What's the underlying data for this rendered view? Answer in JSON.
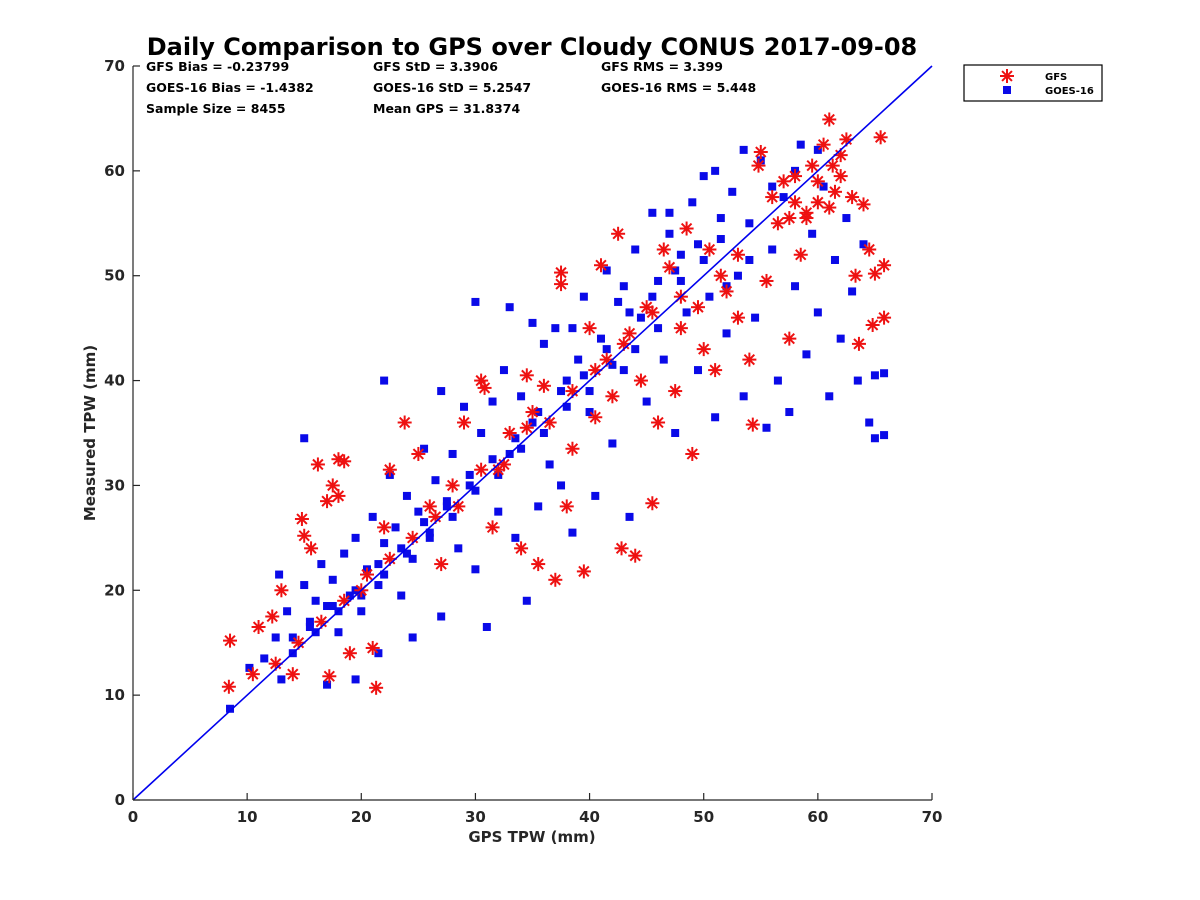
{
  "chart_data": {
    "type": "scatter",
    "title": "Daily Comparison to GPS over Cloudy CONUS 2017-09-08",
    "xlabel": "GPS TPW (mm)",
    "ylabel": "Measured TPW (mm)",
    "xlim": [
      0,
      70
    ],
    "ylim": [
      0,
      70
    ],
    "xticks": [
      "0",
      "10",
      "20",
      "30",
      "40",
      "50",
      "60",
      "70"
    ],
    "yticks": [
      "0",
      "10",
      "20",
      "30",
      "40",
      "50",
      "60",
      "70"
    ],
    "grid": false,
    "legend_position": "outside-top-right",
    "reference_line": {
      "x": [
        0,
        70
      ],
      "y": [
        0,
        70
      ],
      "color": "#0000ee"
    },
    "stats": {
      "gfs_bias": "GFS Bias = -0.23799",
      "gfs_std": "GFS StD = 3.3906",
      "gfs_rms": "GFS RMS = 3.399",
      "goes_bias": "GOES-16 Bias = -1.4382",
      "goes_std": "GOES-16 StD = 5.2547",
      "goes_rms": "GOES-16 RMS = 5.448",
      "sample_size": "Sample Size = 8455",
      "mean_gps": "Mean GPS = 31.8374"
    },
    "series": [
      {
        "name": "GFS",
        "marker": "asterisk",
        "color": "#ee1111",
        "points": [
          [
            8.5,
            15.2
          ],
          [
            8.4,
            10.8
          ],
          [
            10.5,
            12.0
          ],
          [
            11.0,
            16.5
          ],
          [
            12.2,
            17.5
          ],
          [
            13.0,
            20.0
          ],
          [
            14.0,
            12.0
          ],
          [
            14.8,
            26.8
          ],
          [
            15.0,
            25.2
          ],
          [
            15.6,
            24.0
          ],
          [
            16.2,
            32.0
          ],
          [
            17.0,
            28.5
          ],
          [
            17.5,
            30.0
          ],
          [
            18.0,
            32.5
          ],
          [
            18.5,
            32.3
          ],
          [
            18.0,
            29.0
          ],
          [
            17.2,
            11.8
          ],
          [
            19.0,
            14.0
          ],
          [
            20.0,
            20.0
          ],
          [
            21.3,
            10.7
          ],
          [
            21.0,
            14.5
          ],
          [
            22.0,
            26.0
          ],
          [
            22.5,
            31.5
          ],
          [
            23.8,
            36.0
          ],
          [
            25.0,
            33.0
          ],
          [
            26.0,
            28.0
          ],
          [
            27.0,
            22.5
          ],
          [
            28.0,
            30.0
          ],
          [
            29.0,
            36.0
          ],
          [
            30.5,
            40.0
          ],
          [
            30.8,
            39.3
          ],
          [
            31.5,
            26.0
          ],
          [
            32.0,
            31.5
          ],
          [
            33.0,
            35.0
          ],
          [
            34.0,
            24.0
          ],
          [
            34.5,
            40.5
          ],
          [
            35.0,
            37.0
          ],
          [
            35.5,
            22.5
          ],
          [
            36.0,
            39.5
          ],
          [
            37.0,
            21.0
          ],
          [
            37.5,
            50.3
          ],
          [
            37.5,
            49.2
          ],
          [
            38.0,
            28.0
          ],
          [
            38.5,
            33.5
          ],
          [
            39.5,
            21.8
          ],
          [
            40.0,
            45.0
          ],
          [
            40.5,
            36.5
          ],
          [
            41.0,
            51.0
          ],
          [
            41.5,
            42.0
          ],
          [
            42.0,
            38.5
          ],
          [
            42.5,
            54.0
          ],
          [
            42.8,
            24.0
          ],
          [
            43.5,
            44.5
          ],
          [
            44.0,
            23.3
          ],
          [
            44.5,
            40.0
          ],
          [
            45.0,
            47.0
          ],
          [
            45.5,
            28.3
          ],
          [
            46.0,
            36.0
          ],
          [
            46.5,
            52.5
          ],
          [
            47.0,
            50.8
          ],
          [
            47.5,
            39.0
          ],
          [
            48.0,
            45.0
          ],
          [
            48.5,
            54.5
          ],
          [
            49.0,
            33.0
          ],
          [
            49.5,
            47.0
          ],
          [
            50.0,
            43.0
          ],
          [
            50.5,
            52.5
          ],
          [
            51.0,
            41.0
          ],
          [
            52.0,
            48.5
          ],
          [
            53.0,
            46.0
          ],
          [
            54.0,
            42.0
          ],
          [
            54.3,
            35.8
          ],
          [
            54.8,
            60.5
          ],
          [
            55.0,
            61.8
          ],
          [
            55.5,
            49.5
          ],
          [
            56.0,
            57.5
          ],
          [
            56.5,
            55.0
          ],
          [
            57.0,
            59.0
          ],
          [
            57.5,
            44.0
          ],
          [
            58.0,
            59.5
          ],
          [
            58.5,
            52.0
          ],
          [
            59.0,
            55.5
          ],
          [
            59.5,
            60.5
          ],
          [
            60.0,
            57.0
          ],
          [
            60.5,
            62.5
          ],
          [
            61.0,
            64.9
          ],
          [
            61.3,
            60.5
          ],
          [
            61.5,
            58.0
          ],
          [
            62.0,
            61.5
          ],
          [
            62.5,
            63.0
          ],
          [
            63.0,
            57.5
          ],
          [
            63.3,
            50.0
          ],
          [
            63.6,
            43.5
          ],
          [
            64.0,
            56.8
          ],
          [
            64.5,
            52.5
          ],
          [
            64.8,
            45.3
          ],
          [
            65.0,
            50.2
          ],
          [
            65.5,
            63.2
          ],
          [
            65.8,
            51.0
          ],
          [
            65.8,
            46.0
          ],
          [
            58.0,
            57.0
          ],
          [
            59.0,
            56.0
          ],
          [
            60.0,
            59.0
          ],
          [
            61.0,
            56.5
          ],
          [
            62.0,
            59.5
          ],
          [
            57.5,
            55.5
          ],
          [
            53.0,
            52.0
          ],
          [
            51.5,
            50.0
          ],
          [
            48.0,
            48.0
          ],
          [
            45.5,
            46.5
          ],
          [
            43.0,
            43.5
          ],
          [
            40.5,
            41.0
          ],
          [
            38.5,
            39.0
          ],
          [
            36.5,
            36.0
          ],
          [
            34.5,
            35.5
          ],
          [
            32.5,
            32.0
          ],
          [
            30.5,
            31.5
          ],
          [
            28.5,
            28.0
          ],
          [
            26.5,
            27.0
          ],
          [
            24.5,
            25.0
          ],
          [
            22.5,
            23.0
          ],
          [
            20.5,
            21.5
          ],
          [
            18.5,
            19.0
          ],
          [
            16.5,
            17.0
          ],
          [
            14.5,
            15.0
          ],
          [
            12.5,
            13.0
          ]
        ]
      },
      {
        "name": "GOES-16",
        "marker": "square",
        "color": "#0a0ae8",
        "points": [
          [
            8.5,
            8.7
          ],
          [
            10.2,
            12.6
          ],
          [
            11.5,
            13.5
          ],
          [
            12.5,
            15.5
          ],
          [
            12.8,
            21.5
          ],
          [
            13.5,
            18.0
          ],
          [
            14.0,
            14.0
          ],
          [
            15.0,
            20.5
          ],
          [
            15.5,
            17.0
          ],
          [
            16.0,
            19.0
          ],
          [
            16.5,
            22.5
          ],
          [
            17.0,
            18.5
          ],
          [
            17.5,
            21.0
          ],
          [
            18.0,
            16.0
          ],
          [
            18.5,
            23.5
          ],
          [
            19.0,
            19.5
          ],
          [
            19.5,
            25.0
          ],
          [
            20.0,
            18.0
          ],
          [
            20.5,
            22.0
          ],
          [
            21.0,
            27.0
          ],
          [
            21.5,
            20.5
          ],
          [
            22.0,
            24.5
          ],
          [
            22.5,
            31.0
          ],
          [
            23.0,
            26.0
          ],
          [
            23.5,
            19.5
          ],
          [
            24.0,
            29.0
          ],
          [
            24.5,
            23.0
          ],
          [
            25.0,
            27.5
          ],
          [
            25.5,
            33.5
          ],
          [
            26.0,
            25.5
          ],
          [
            26.5,
            30.5
          ],
          [
            27.0,
            17.5
          ],
          [
            27.5,
            28.5
          ],
          [
            28.0,
            33.0
          ],
          [
            28.5,
            24.0
          ],
          [
            29.0,
            37.5
          ],
          [
            29.5,
            31.0
          ],
          [
            30.0,
            22.0
          ],
          [
            30.5,
            35.0
          ],
          [
            31.0,
            16.5
          ],
          [
            31.5,
            38.0
          ],
          [
            32.0,
            27.5
          ],
          [
            32.5,
            41.0
          ],
          [
            33.0,
            33.0
          ],
          [
            33.5,
            25.0
          ],
          [
            34.0,
            38.5
          ],
          [
            34.5,
            19.0
          ],
          [
            35.0,
            36.0
          ],
          [
            35.5,
            28.0
          ],
          [
            36.0,
            43.5
          ],
          [
            36.5,
            32.0
          ],
          [
            37.0,
            45.0
          ],
          [
            37.5,
            30.0
          ],
          [
            38.0,
            40.0
          ],
          [
            38.5,
            25.5
          ],
          [
            39.0,
            42.0
          ],
          [
            39.5,
            48.0
          ],
          [
            40.0,
            37.0
          ],
          [
            40.5,
            29.0
          ],
          [
            41.0,
            44.0
          ],
          [
            41.5,
            50.5
          ],
          [
            42.0,
            34.0
          ],
          [
            42.5,
            47.5
          ],
          [
            43.0,
            41.0
          ],
          [
            43.5,
            27.0
          ],
          [
            44.0,
            52.5
          ],
          [
            44.5,
            46.0
          ],
          [
            45.0,
            38.0
          ],
          [
            45.5,
            56.0
          ],
          [
            46.0,
            49.5
          ],
          [
            46.5,
            42.0
          ],
          [
            47.0,
            54.0
          ],
          [
            47.5,
            35.0
          ],
          [
            48.0,
            52.0
          ],
          [
            48.5,
            46.5
          ],
          [
            49.0,
            57.0
          ],
          [
            49.5,
            41.0
          ],
          [
            50.0,
            59.5
          ],
          [
            50.5,
            48.0
          ],
          [
            51.0,
            36.5
          ],
          [
            51.5,
            53.5
          ],
          [
            52.0,
            44.5
          ],
          [
            52.5,
            58.0
          ],
          [
            53.0,
            50.0
          ],
          [
            53.5,
            38.5
          ],
          [
            54.0,
            55.0
          ],
          [
            54.5,
            46.0
          ],
          [
            55.0,
            61.0
          ],
          [
            55.5,
            35.5
          ],
          [
            56.0,
            52.5
          ],
          [
            56.5,
            40.0
          ],
          [
            57.0,
            57.5
          ],
          [
            57.5,
            37.0
          ],
          [
            58.0,
            49.0
          ],
          [
            58.5,
            62.5
          ],
          [
            59.0,
            42.5
          ],
          [
            59.5,
            54.0
          ],
          [
            60.0,
            46.5
          ],
          [
            60.5,
            58.5
          ],
          [
            61.0,
            38.5
          ],
          [
            61.5,
            51.5
          ],
          [
            62.0,
            44.0
          ],
          [
            62.5,
            55.5
          ],
          [
            63.0,
            48.5
          ],
          [
            63.5,
            40.0
          ],
          [
            64.0,
            53.0
          ],
          [
            64.5,
            36.0
          ],
          [
            65.0,
            40.5
          ],
          [
            65.0,
            34.5
          ],
          [
            65.8,
            40.7
          ],
          [
            65.8,
            34.8
          ],
          [
            60.0,
            62.0
          ],
          [
            58.0,
            60.0
          ],
          [
            56.0,
            58.5
          ],
          [
            54.0,
            51.5
          ],
          [
            52.0,
            49.0
          ],
          [
            50.0,
            51.5
          ],
          [
            48.0,
            49.5
          ],
          [
            46.0,
            45.0
          ],
          [
            44.0,
            43.0
          ],
          [
            42.0,
            41.5
          ],
          [
            40.0,
            39.0
          ],
          [
            38.0,
            37.5
          ],
          [
            36.0,
            35.0
          ],
          [
            34.0,
            33.5
          ],
          [
            32.0,
            31.0
          ],
          [
            30.0,
            29.5
          ],
          [
            28.0,
            27.0
          ],
          [
            26.0,
            25.0
          ],
          [
            24.0,
            23.5
          ],
          [
            22.0,
            21.5
          ],
          [
            20.0,
            19.5
          ],
          [
            18.0,
            18.0
          ],
          [
            16.0,
            16.0
          ],
          [
            14.0,
            15.5
          ],
          [
            13.0,
            11.5
          ],
          [
            17.0,
            11.0
          ],
          [
            19.5,
            11.5
          ],
          [
            21.5,
            14.0
          ],
          [
            24.5,
            15.5
          ],
          [
            15.0,
            34.5
          ],
          [
            22.0,
            40.0
          ],
          [
            27.0,
            39.0
          ],
          [
            30.0,
            47.5
          ],
          [
            33.0,
            47.0
          ],
          [
            35.0,
            45.5
          ],
          [
            38.5,
            45.0
          ],
          [
            43.0,
            49.0
          ],
          [
            47.0,
            56.0
          ],
          [
            51.0,
            60.0
          ],
          [
            53.5,
            62.0
          ],
          [
            51.5,
            55.5
          ],
          [
            49.5,
            53.0
          ],
          [
            47.5,
            50.5
          ],
          [
            45.5,
            48.0
          ],
          [
            43.5,
            46.5
          ],
          [
            41.5,
            43.0
          ],
          [
            39.5,
            40.5
          ],
          [
            37.5,
            39.0
          ],
          [
            35.5,
            37.0
          ],
          [
            33.5,
            34.5
          ],
          [
            31.5,
            32.5
          ],
          [
            29.5,
            30.0
          ],
          [
            27.5,
            28.0
          ],
          [
            25.5,
            26.5
          ],
          [
            23.5,
            24.0
          ],
          [
            21.5,
            22.5
          ],
          [
            19.5,
            20.0
          ],
          [
            17.5,
            18.5
          ],
          [
            15.5,
            16.5
          ]
        ]
      }
    ]
  }
}
